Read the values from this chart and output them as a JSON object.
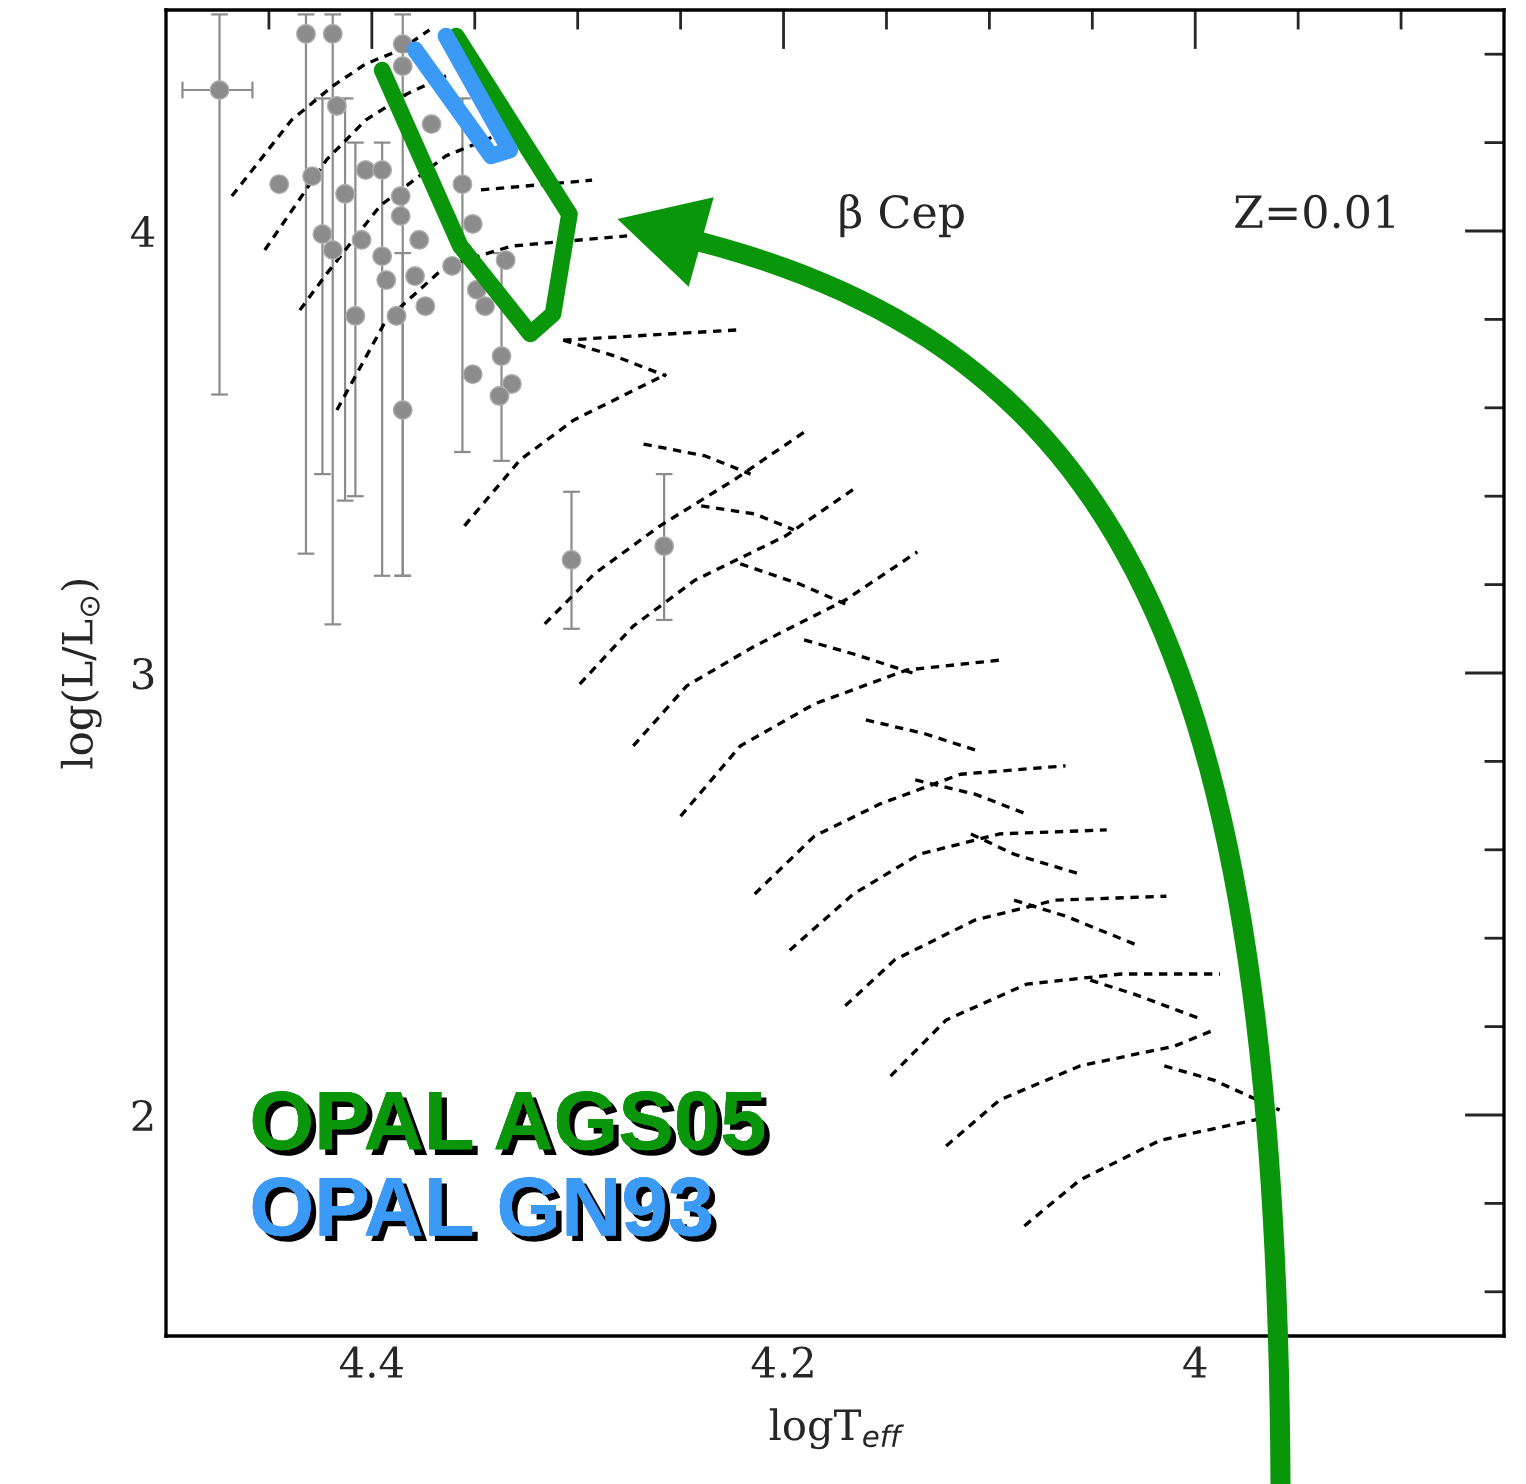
{
  "chart_data": {
    "type": "scatter",
    "xlabel": "logT$_{eff}$",
    "ylabel": "log(L/L$_{⊙}$)",
    "annotations": [
      "β Cep",
      "Z=0.01"
    ],
    "xlim": [
      4.5,
      3.85
    ],
    "ylim": [
      1.5,
      4.5
    ],
    "xticks": [
      {
        "value": 4.45,
        "label": null
      },
      4.4,
      {
        "value": 4.35,
        "label": null
      },
      {
        "value": 4.3,
        "label": null
      },
      {
        "value": 4.25,
        "label": null
      },
      4.2,
      {
        "value": 4.15,
        "label": null
      },
      {
        "value": 4.1,
        "label": null
      },
      {
        "value": 4.05,
        "label": null
      },
      {
        "value": 4,
        "label": "4"
      },
      {
        "value": 3.95,
        "label": null
      },
      {
        "value": 3.9,
        "label": null
      }
    ],
    "yticks": [
      {
        "value": 1.6,
        "label": null
      },
      {
        "value": 1.8,
        "label": null
      },
      {
        "value": 2,
        "label": "2"
      },
      {
        "value": 2.2,
        "label": null
      },
      {
        "value": 2.4,
        "label": null
      },
      {
        "value": 2.6,
        "label": null
      },
      {
        "value": 2.8,
        "label": null
      },
      {
        "value": 3,
        "label": "3"
      },
      {
        "value": 3.2,
        "label": null
      },
      {
        "value": 3.4,
        "label": null
      },
      {
        "value": 3.6,
        "label": null
      },
      {
        "value": 3.8,
        "label": null
      },
      {
        "value": 4,
        "label": "4"
      },
      {
        "value": 4.2,
        "label": null
      },
      {
        "value": 4.4,
        "label": null
      }
    ],
    "grid": false,
    "legend": "bottom left",
    "series": [
      {
        "type": "line",
        "color": "#000000",
        "line_style": "dashed",
        "x": [
          4.468,
          4.439,
          4.419,
          4.403,
          4.386,
          4.372
        ],
        "values": [
          4.079,
          4.251,
          4.328,
          4.378,
          4.41,
          4.455
        ]
      },
      {
        "type": "line",
        "color": "#000000",
        "line_style": "dashed",
        "x": [
          4.452,
          4.422,
          4.403,
          4.383,
          4.364
        ],
        "values": [
          3.957,
          4.161,
          4.251,
          4.31,
          4.351
        ]
      },
      {
        "type": "line",
        "color": "#000000",
        "line_style": "dashed",
        "x": [
          4.435,
          4.422,
          4.396,
          4.364,
          4.338
        ],
        "values": [
          3.821,
          3.903,
          4.057,
          4.17,
          4.219
        ]
      },
      {
        "type": "line",
        "color": "#000000",
        "line_style": "dashed",
        "x": [
          4.347,
          4.293
        ],
        "values": [
          4.093,
          4.115
        ]
      },
      {
        "type": "line",
        "color": "#000000",
        "line_style": "dashed",
        "x": [
          4.417,
          4.393,
          4.364,
          4.332,
          4.276
        ],
        "values": [
          3.595,
          3.799,
          3.921,
          3.966,
          3.989
        ]
      },
      {
        "type": "line",
        "color": "#000000",
        "line_style": "dashed",
        "x": [
          4.355,
          4.328,
          4.302,
          4.257
        ],
        "values": [
          3.333,
          3.482,
          3.572,
          3.676
        ]
      },
      {
        "type": "line",
        "color": "#000000",
        "line_style": "dashed",
        "x": [
          4.307,
          4.223
        ],
        "values": [
          3.753,
          3.776
        ]
      },
      {
        "type": "line",
        "color": "#000000",
        "line_style": "dashed",
        "x": [
          4.316,
          4.292,
          4.26,
          4.224,
          4.19
        ],
        "values": [
          3.111,
          3.224,
          3.333,
          3.437,
          3.545
        ]
      },
      {
        "type": "line",
        "color": "#000000",
        "line_style": "dashed",
        "x": [
          4.299,
          4.273,
          4.243,
          4.199,
          4.165
        ],
        "values": [
          2.975,
          3.106,
          3.21,
          3.31,
          3.419
        ]
      },
      {
        "type": "line",
        "color": "#000000",
        "line_style": "dashed",
        "x": [
          4.273,
          4.247,
          4.214,
          4.17,
          4.135
        ],
        "values": [
          2.835,
          2.971,
          3.061,
          3.165,
          3.274
        ]
      },
      {
        "type": "line",
        "color": "#000000",
        "line_style": "dashed",
        "x": [
          4.25,
          4.221,
          4.185,
          4.14,
          4.095
        ],
        "values": [
          2.676,
          2.835,
          2.93,
          3.007,
          3.029
        ]
      },
      {
        "type": "line",
        "color": "#000000",
        "line_style": "dashed",
        "x": [
          4.214,
          4.185,
          4.153,
          4.114,
          4.063
        ],
        "values": [
          2.5,
          2.631,
          2.704,
          2.771,
          2.79
        ]
      },
      {
        "type": "line",
        "color": "#000000",
        "line_style": "dashed",
        "x": [
          4.197,
          4.166,
          4.134,
          4.095,
          4.043
        ],
        "values": [
          2.373,
          2.5,
          2.59,
          2.636,
          2.645
        ]
      },
      {
        "type": "line",
        "color": "#000000",
        "line_style": "dashed",
        "x": [
          4.17,
          4.146,
          4.107,
          4.068,
          4.014
        ],
        "values": [
          2.247,
          2.351,
          2.441,
          2.486,
          2.495
        ]
      },
      {
        "type": "line",
        "color": "#000000",
        "line_style": "dashed",
        "x": [
          4.148,
          4.121,
          4.082,
          4.036,
          3.988
        ],
        "values": [
          2.088,
          2.215,
          2.296,
          2.319,
          2.319
        ]
      },
      {
        "type": "line",
        "color": "#000000",
        "line_style": "dashed",
        "x": [
          4.121,
          4.095,
          4.056,
          4.01,
          3.991
        ],
        "values": [
          1.93,
          2.034,
          2.111,
          2.156,
          2.192
        ]
      },
      {
        "type": "line",
        "color": "#000000",
        "line_style": "dashed",
        "x": [
          4.083,
          4.056,
          4.017,
          3.971,
          3.959
        ],
        "values": [
          1.749,
          1.853,
          1.943,
          1.989,
          2.007
        ]
      },
      {
        "type": "line",
        "color": "#000000",
        "line_style": "dashed",
        "x": [
          4.307,
          4.282,
          4.257
        ],
        "values": [
          3.753,
          3.717,
          3.672
        ]
      },
      {
        "type": "line",
        "color": "#000000",
        "line_style": "dashed",
        "x": [
          4.268,
          4.238,
          4.216
        ],
        "values": [
          3.518,
          3.491,
          3.45
        ]
      },
      {
        "type": "line",
        "color": "#000000",
        "line_style": "dashed",
        "x": [
          4.24,
          4.214,
          4.195
        ],
        "values": [
          3.378,
          3.36,
          3.324
        ]
      },
      {
        "type": "line",
        "color": "#000000",
        "line_style": "dashed",
        "x": [
          4.221,
          4.192,
          4.17
        ],
        "values": [
          3.247,
          3.201,
          3.156
        ]
      },
      {
        "type": "line",
        "color": "#000000",
        "line_style": "dashed",
        "x": [
          4.19,
          4.166,
          4.136
        ],
        "values": [
          3.075,
          3.043,
          2.998
        ]
      },
      {
        "type": "line",
        "color": "#000000",
        "line_style": "dashed",
        "x": [
          4.16,
          4.131,
          4.107
        ],
        "values": [
          2.894,
          2.862,
          2.826
        ]
      },
      {
        "type": "line",
        "color": "#000000",
        "line_style": "dashed",
        "x": [
          4.136,
          4.107,
          4.082
        ],
        "values": [
          2.758,
          2.726,
          2.681
        ]
      },
      {
        "type": "line",
        "color": "#000000",
        "line_style": "dashed",
        "x": [
          4.109,
          4.088,
          4.056
        ],
        "values": [
          2.636,
          2.59,
          2.545
        ]
      },
      {
        "type": "line",
        "color": "#000000",
        "line_style": "dashed",
        "x": [
          4.088,
          4.063,
          4.027
        ],
        "values": [
          2.486,
          2.45,
          2.382
        ]
      },
      {
        "type": "line",
        "color": "#000000",
        "line_style": "dashed",
        "x": [
          4.051,
          4.03,
          3.996
        ],
        "values": [
          2.305,
          2.274,
          2.215
        ]
      },
      {
        "type": "line",
        "color": "#000000",
        "line_style": "dashed",
        "x": [
          4.015,
          3.991,
          3.959
        ],
        "values": [
          2.111,
          2.079,
          2.011
        ]
      },
      {
        "color": "#8c8c8c",
        "marker": "circle",
        "x": [
          4.474,
          4.432,
          4.419,
          4.417,
          4.445,
          4.429,
          4.413,
          4.403,
          4.395,
          4.385,
          4.385,
          4.371,
          4.356,
          4.386,
          4.424,
          4.419,
          4.405,
          4.386,
          4.377,
          4.395,
          4.393,
          4.379,
          4.408,
          4.388,
          4.374,
          4.361,
          4.351,
          4.335,
          4.349,
          4.345,
          4.337,
          4.351,
          4.332,
          4.338,
          4.385,
          4.303,
          4.258
        ],
        "values": [
          4.319,
          4.446,
          4.446,
          4.283,
          4.106,
          4.124,
          4.084,
          4.138,
          4.138,
          4.423,
          4.373,
          4.242,
          4.106,
          4.079,
          3.993,
          3.957,
          3.98,
          4.034,
          3.98,
          3.943,
          3.889,
          3.898,
          3.808,
          3.808,
          3.83,
          3.921,
          4.016,
          3.934,
          3.867,
          3.83,
          3.717,
          3.676,
          3.654,
          3.627,
          3.595,
          3.256,
          3.287
        ],
        "errors": [
          [
            3.63,
            4.49
          ],
          [
            3.27,
            4.49
          ],
          [
            3.11,
            4.49
          ],
          null,
          null,
          null,
          [
            3.39,
            4.3
          ],
          null,
          null,
          [
            3.22,
            4.49
          ],
          null,
          null,
          [
            3.5,
            4.3
          ],
          null,
          [
            3.45,
            4.3
          ],
          null,
          null,
          null,
          null,
          [
            3.22,
            4.2
          ],
          null,
          null,
          [
            3.4,
            4.2
          ],
          null,
          null,
          null,
          null,
          null,
          null,
          null,
          [
            3.48,
            3.95
          ],
          null,
          null,
          null,
          [
            3.22,
            3.95
          ],
          [
            3.1,
            3.41
          ],
          [
            3.12,
            3.45
          ]
        ],
        "xerrors": [
          [
            4.458,
            4.492
          ],
          null,
          null,
          null,
          null,
          null,
          null,
          null,
          null,
          null,
          null,
          null,
          null,
          null,
          null,
          null,
          null,
          null,
          null,
          null,
          null,
          null,
          null,
          null,
          null,
          null,
          null,
          null,
          null,
          null,
          null,
          null,
          null,
          null,
          null,
          null,
          null
        ]
      },
      {
        "type": "line",
        "name": "OPAL AGS05",
        "color": "#0a960a",
        "line_style": "solid",
        "x": [
          4.395,
          4.357,
          4.323,
          4.312,
          4.304,
          4.359
        ],
        "values": [
          4.364,
          3.966,
          3.767,
          3.812,
          4.038,
          4.441
        ]
      },
      {
        "type": "line",
        "name": "OPAL GN93",
        "color": "#3a9af5",
        "line_style": "solid",
        "x": [
          4.379,
          4.342,
          4.333,
          4.364
        ],
        "values": [
          4.41,
          4.17,
          4.183,
          4.441
        ]
      }
    ]
  }
}
